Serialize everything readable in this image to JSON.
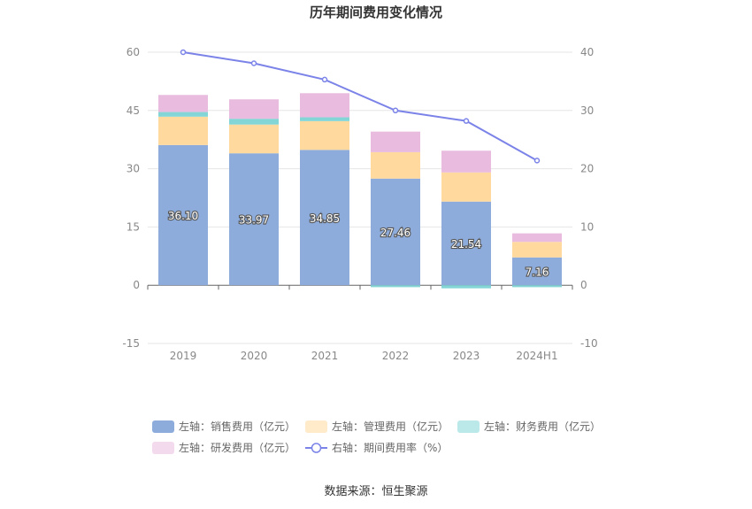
{
  "chart_data": {
    "type": "bar",
    "title": "历年期间费用变化情况",
    "categories": [
      "2019",
      "2020",
      "2021",
      "2022",
      "2023",
      "2024H1"
    ],
    "stacked": true,
    "left_axis": {
      "ylim": [
        -15,
        60
      ],
      "ticks": [
        -15,
        0,
        15,
        30,
        45,
        60
      ]
    },
    "right_axis": {
      "ylim": [
        -10,
        40
      ],
      "ticks": [
        -10,
        0,
        10,
        20,
        30,
        40
      ]
    },
    "series": [
      {
        "name": "左轴：销售费用（亿元）",
        "axis": "left",
        "type": "bar",
        "color": "#8dacdb",
        "values": [
          36.1,
          33.97,
          34.85,
          27.46,
          21.54,
          7.16
        ],
        "show_labels": true
      },
      {
        "name": "左轴：管理费用（亿元）",
        "axis": "left",
        "type": "bar",
        "color": "#ffd99e",
        "values": [
          7.3,
          7.4,
          7.4,
          6.8,
          7.5,
          4.0
        ]
      },
      {
        "name": "左轴：财务费用（亿元）",
        "axis": "left",
        "type": "bar",
        "color": "#84d6d6",
        "values": [
          1.2,
          1.5,
          1.0,
          -0.5,
          -0.8,
          -0.5
        ]
      },
      {
        "name": "左轴：研发费用（亿元）",
        "axis": "left",
        "type": "bar",
        "color": "#e9bcdf",
        "values": [
          4.4,
          5.0,
          6.2,
          5.3,
          5.6,
          2.2
        ]
      },
      {
        "name": "右轴：期间费用率（%）",
        "axis": "right",
        "type": "line",
        "color": "#7b83e8",
        "values": [
          40.0,
          38.1,
          35.3,
          30.0,
          28.2,
          21.4
        ]
      }
    ],
    "legend_position": "bottom",
    "grid": true,
    "source": "数据来源：恒生聚源"
  }
}
